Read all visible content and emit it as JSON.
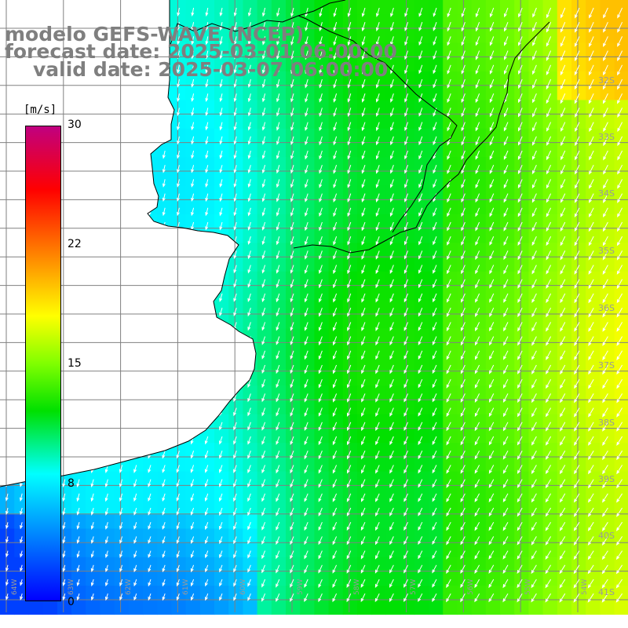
{
  "title": {
    "line1": "modelo GEFS-WAVE (NCEP)",
    "line2": "forecast date: 2025-03-01 06:00:00",
    "line3": "valid date: 2025-03-07 06:00:00"
  },
  "colorbar": {
    "unit": "[m/s]",
    "min": 0,
    "max": 30,
    "ticks": [
      "30",
      "22",
      "15",
      "8",
      "0"
    ],
    "tick_values": [
      30,
      22,
      15,
      8,
      0
    ],
    "stops": [
      {
        "value": 0,
        "color": "#0000ff"
      },
      {
        "value": 4,
        "color": "#0080ff"
      },
      {
        "value": 8,
        "color": "#00ffff"
      },
      {
        "value": 12,
        "color": "#00e000"
      },
      {
        "value": 15,
        "color": "#80ff00"
      },
      {
        "value": 18,
        "color": "#ffff00"
      },
      {
        "value": 22,
        "color": "#ff8000"
      },
      {
        "value": 26,
        "color": "#ff0000"
      },
      {
        "value": 30,
        "color": "#c00080"
      }
    ]
  },
  "lat_labels": [
    "32S",
    "33S",
    "34S",
    "35S",
    "36S",
    "37S",
    "38S",
    "39S",
    "40S",
    "41S"
  ],
  "lat_values": [
    -32,
    -33,
    -34,
    -35,
    -36,
    -37,
    -38,
    -39,
    -40,
    -41
  ],
  "lon_labels": [
    "64W",
    "63W",
    "62W",
    "61W",
    "60W",
    "59W",
    "58W",
    "57W",
    "56W",
    "55W",
    "54W"
  ],
  "lon_values": [
    -64,
    -63,
    -62,
    -61,
    -60,
    -59,
    -58,
    -57,
    -56,
    -55,
    -54
  ],
  "colors": {
    "land": "#ffffff",
    "coast": "#000000",
    "grid": "#808080",
    "arrow": "#ffffff"
  }
}
